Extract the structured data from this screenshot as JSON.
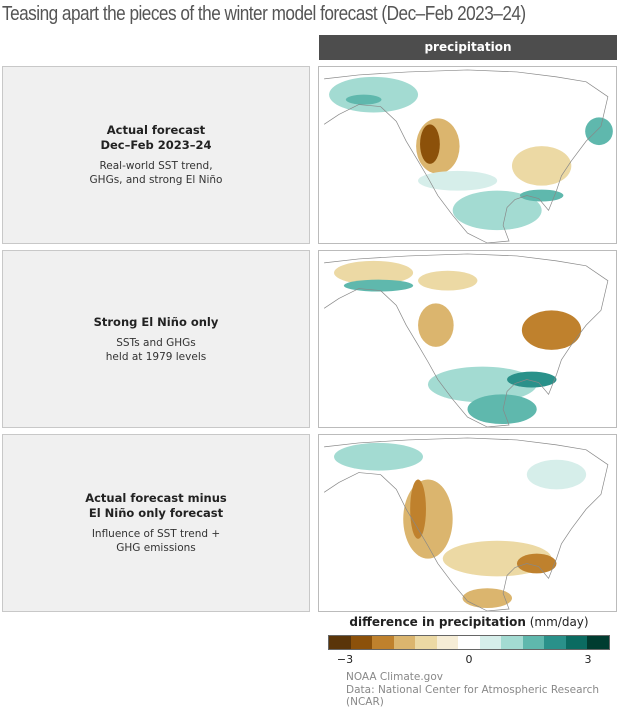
{
  "title": "Teasing apart the pieces of the winter model forecast (Dec–Feb 2023–24)",
  "column_header": "precipitation",
  "panels": [
    {
      "title_lines": [
        "Actual forecast",
        "Dec–Feb 2023–24"
      ],
      "subtitle_lines": [
        "Real-world SST trend,",
        "GHGs, and strong El Niño"
      ]
    },
    {
      "title_lines": [
        "Strong El Niño only"
      ],
      "subtitle_lines": [
        "SSTs and GHGs",
        "held at 1979 levels"
      ]
    },
    {
      "title_lines": [
        "Actual forecast minus",
        "El Niño only forecast"
      ],
      "subtitle_lines": [
        "Influence of SST trend +",
        "GHG emissions"
      ]
    }
  ],
  "colorbar": {
    "title_bold": "difference in precipitation",
    "units": "(mm/day)",
    "colors": [
      "#5a3509",
      "#8c510a",
      "#bf812d",
      "#dbb56e",
      "#ecd9a4",
      "#f6edd6",
      "#ffffff",
      "#d6eeea",
      "#a3dbd2",
      "#5fb8ad",
      "#2a918a",
      "#0b6b61",
      "#003c30"
    ],
    "ticks": [
      "−3",
      "0",
      "3"
    ],
    "range": [
      -3,
      3
    ]
  },
  "credits": [
    "NOAA Climate.gov",
    "Data: National Center for Atmospheric Research (NCAR)"
  ]
}
